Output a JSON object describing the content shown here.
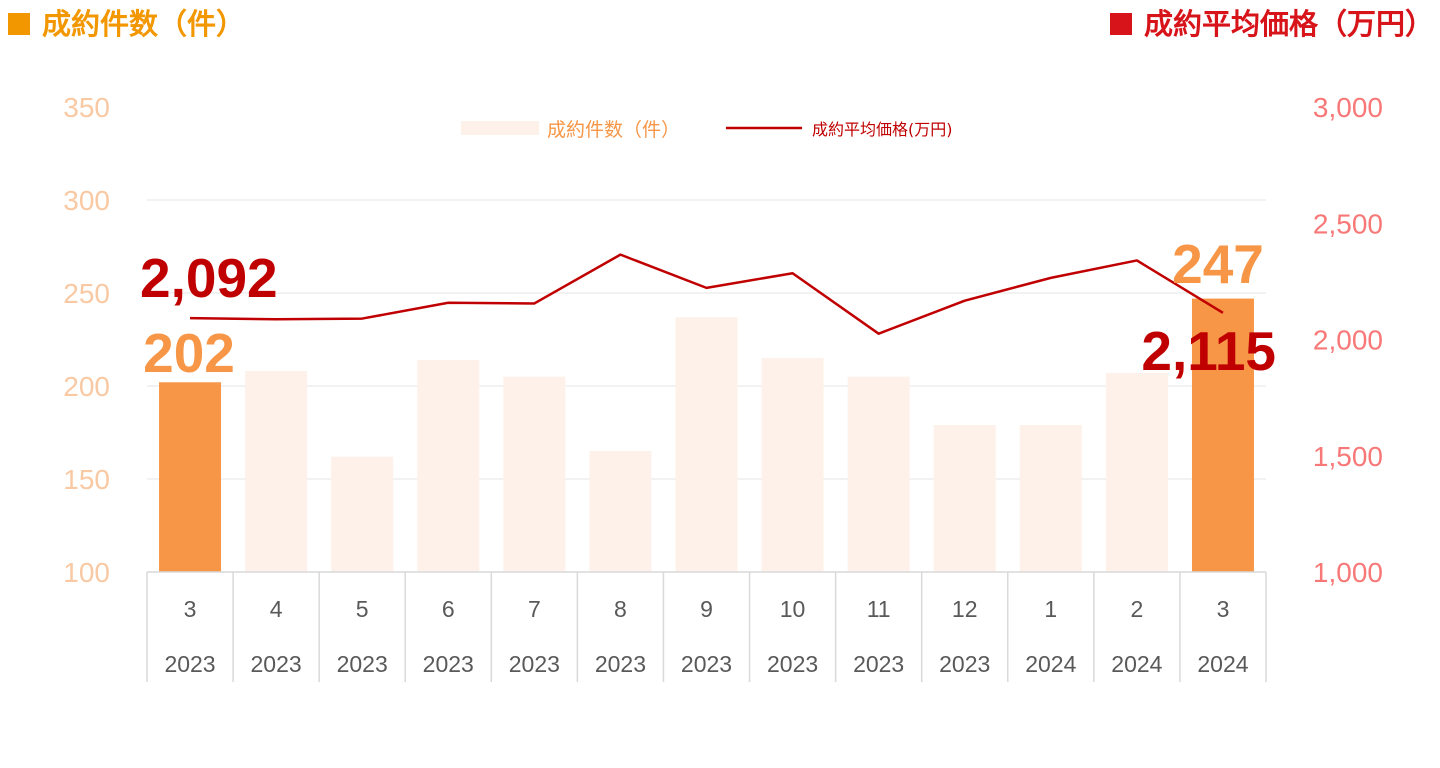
{
  "header": {
    "left_title": "成約件数（件）",
    "right_title": "成約平均価格（万円）"
  },
  "colors": {
    "highlight_bar": "#F79646",
    "light_bar": "#FDF1E9",
    "line": "#C00000",
    "left_axis_text": "#F9C9A3",
    "right_axis_text": "#F87878",
    "left_header": "#F29700",
    "right_header": "#D7141A",
    "big_count_label": "#F79646",
    "big_price_label": "#C00000",
    "grid": "#D9D9D9",
    "category_text": "#595959"
  },
  "chart_data": {
    "type": "bar",
    "categories": [
      "3",
      "4",
      "5",
      "6",
      "7",
      "8",
      "9",
      "10",
      "11",
      "12",
      "1",
      "2",
      "3"
    ],
    "years": [
      "2023",
      "2023",
      "2023",
      "2023",
      "2023",
      "2023",
      "2023",
      "2023",
      "2023",
      "2023",
      "2024",
      "2024",
      "2024"
    ],
    "series": [
      {
        "name": "成約件数（件）",
        "type": "bar",
        "axis": "left",
        "values": [
          202,
          208,
          162,
          214,
          205,
          165,
          237,
          215,
          205,
          179,
          179,
          207,
          247
        ]
      },
      {
        "name": "成約平均価格(万円)",
        "type": "line",
        "axis": "right",
        "values": [
          2092,
          2087,
          2090,
          2158,
          2155,
          2365,
          2222,
          2285,
          2025,
          2167,
          2265,
          2340,
          2115
        ]
      }
    ],
    "left_axis": {
      "min": 100,
      "max": 350,
      "ticks": [
        "100",
        "150",
        "200",
        "250",
        "300",
        "350"
      ]
    },
    "right_axis": {
      "min": 1000,
      "max": 3000,
      "ticks": [
        "1,000",
        "1,500",
        "2,000",
        "2,500",
        "3,000"
      ]
    },
    "grid": true,
    "legend_position": "top-center",
    "highlighted_bars": [
      0,
      12
    ],
    "annotations": [
      {
        "series": 0,
        "index": 0,
        "text": "202"
      },
      {
        "series": 0,
        "index": 12,
        "text": "247"
      },
      {
        "series": 1,
        "index": 0,
        "text": "2,092"
      },
      {
        "series": 1,
        "index": 12,
        "text": "2,115"
      }
    ]
  }
}
